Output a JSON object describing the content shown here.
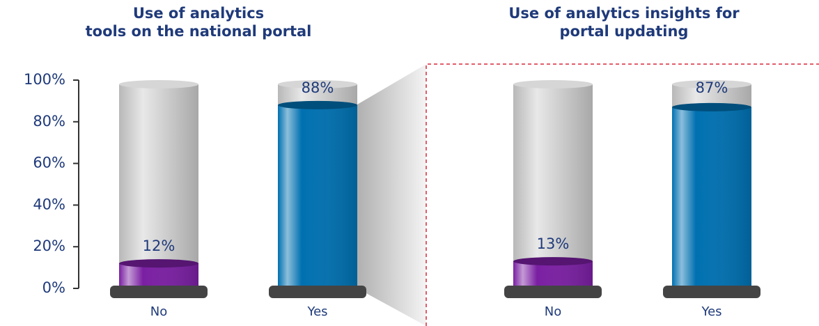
{
  "chart_data": [
    {
      "type": "cylinder",
      "title": [
        "Use of analytics",
        "tools on the national portal"
      ],
      "categories": [
        "No",
        "Yes"
      ],
      "values": [
        12,
        88
      ],
      "value_labels": [
        "12%",
        "88%"
      ],
      "colors": [
        "#7a1fa2",
        "#0070b0"
      ],
      "ylim": [
        0,
        100
      ],
      "yticks": [
        {
          "value": 0,
          "label": "0%"
        },
        {
          "value": 20,
          "label": "20%"
        },
        {
          "value": 40,
          "label": "40%"
        },
        {
          "value": 60,
          "label": "60%"
        },
        {
          "value": 80,
          "label": "80%"
        },
        {
          "value": 100,
          "label": "100%"
        }
      ]
    },
    {
      "type": "cylinder",
      "title": [
        "Use of analytics insights for",
        "portal updating"
      ],
      "categories": [
        "No",
        "Yes"
      ],
      "values": [
        13,
        87
      ],
      "value_labels": [
        "13%",
        "87%"
      ],
      "colors": [
        "#7a1fa2",
        "#0070b0"
      ],
      "ylim": [
        0,
        100
      ]
    }
  ]
}
